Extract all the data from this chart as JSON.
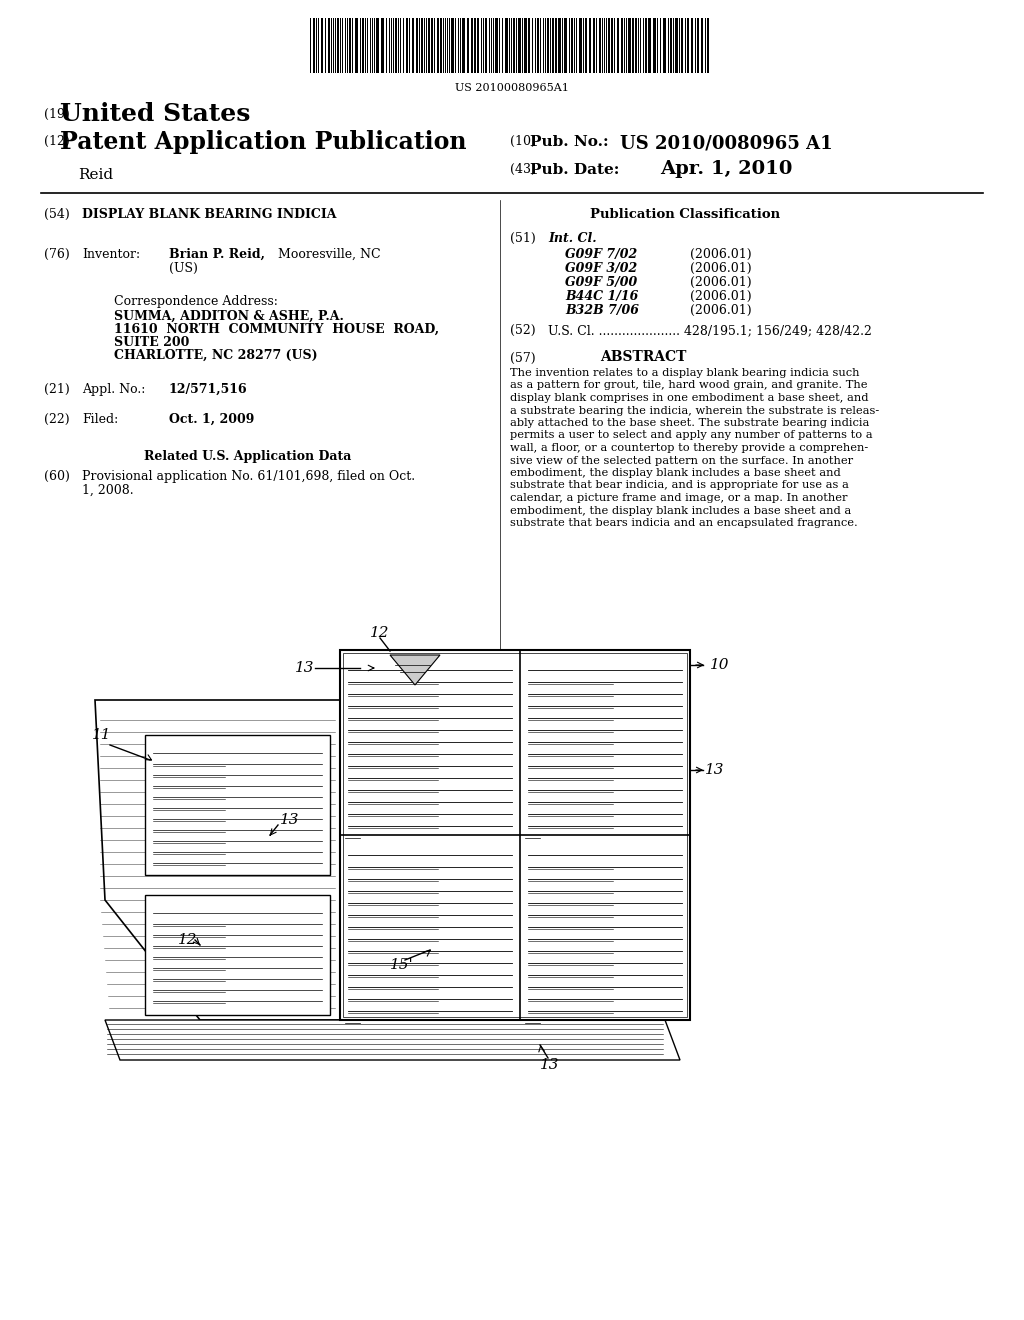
{
  "bg_color": "#ffffff",
  "barcode_text": "US 20100080965A1",
  "header_19": "(19)",
  "header_19_text": "United States",
  "header_12": "(12)",
  "header_12_text": "Patent Application Publication",
  "header_reid": "Reid",
  "header_10_label": "(10)",
  "header_10_pub": "Pub. No.:",
  "header_10_val": "US 2010/0080965 A1",
  "header_43_label": "(43)",
  "header_43_pub": "Pub. Date:",
  "header_43_val": "Apr. 1, 2010",
  "field_54_label": "(54)",
  "field_54_title": "DISPLAY BLANK BEARING INDICIA",
  "pub_class_title": "Publication Classification",
  "field_51_label": "(51)",
  "field_51_title": "Int. Cl.",
  "int_cl_entries": [
    [
      "G09F 7/02",
      "(2006.01)"
    ],
    [
      "G09F 3/02",
      "(2006.01)"
    ],
    [
      "G09F 5/00",
      "(2006.01)"
    ],
    [
      "B44C 1/16",
      "(2006.01)"
    ],
    [
      "B32B 7/06",
      "(2006.01)"
    ]
  ],
  "field_52_label": "(52)",
  "field_52_text": "U.S. Cl. ..................... 428/195.1; 156/249; 428/42.2",
  "field_57_label": "(57)",
  "field_57_title": "ABSTRACT",
  "abstract_text": "The invention relates to a display blank bearing indicia such as a pattern for grout, tile, hard wood grain, and granite. The display blank comprises in one embodiment a base sheet, and a substrate bearing the indicia, wherein the substrate is releas-ably attached to the base sheet. The substrate bearing indicia permits a user to select and apply any number of patterns to a wall, a floor, or a countertop to thereby provide a comprehen-sive view of the selected pattern on the surface. In another embodiment, the display blank includes a base sheet and substrate that bear indicia, and is appropriate for use as a calendar, a picture frame and image, or a map. In another embodiment, the display blank includes a base sheet and a substrate that bears indicia and an encapsulated fragrance.",
  "field_76_label": "(76)",
  "field_76_title": "Inventor:",
  "field_76_text": "Brian P. Reid, Mooresville, NC\n(US)",
  "corr_title": "Correspondence Address:",
  "corr_line1": "SUMMA, ADDITON & ASHE, P.A.",
  "corr_line2": "11610  NORTH  COMMUNITY  HOUSE  ROAD,",
  "corr_line3": "SUITE 200",
  "corr_line4": "CHARLOTTE, NC 28277 (US)",
  "field_21_label": "(21)",
  "field_21_title": "Appl. No.:",
  "field_21_val": "12/571,516",
  "field_22_label": "(22)",
  "field_22_title": "Filed:",
  "field_22_val": "Oct. 1, 2009",
  "related_title": "Related U.S. Application Data",
  "field_60_label": "(60)",
  "field_60_text": "Provisional application No. 61/101,698, filed on Oct.\n1, 2008."
}
